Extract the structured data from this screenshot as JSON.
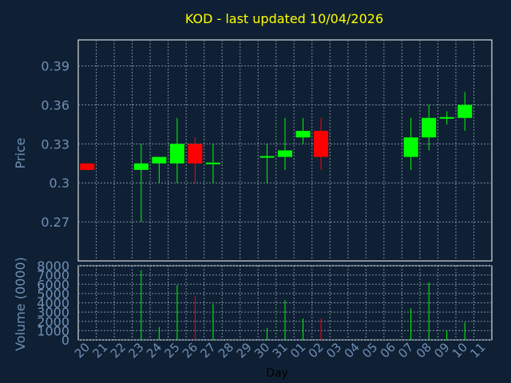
{
  "colors": {
    "background": "#0f2034",
    "plot": "#ffffff",
    "title": "#ffff00",
    "axis_text": "#6f8fb5",
    "grid": "#7f8ea0",
    "up": "#00ff00",
    "down": "#ff0000"
  },
  "chart_data": {
    "type": "candlestick",
    "title": "KOD - last updated 10/04/2026",
    "xlabel": "Day",
    "price_panel": {
      "ylabel": "Price",
      "yticks": [
        "0.27",
        "0.3",
        "0.33",
        "0.36",
        "0.39"
      ],
      "tick_values": [
        0.27,
        0.3,
        0.33,
        0.36,
        0.39
      ],
      "ylim": [
        0.24,
        0.41
      ],
      "grid": true
    },
    "volume_panel": {
      "ylabel": "Volume (0000)",
      "yticks": [
        "0",
        "1000",
        "2000",
        "3000",
        "4000",
        "5000",
        "6000",
        "7000",
        "8000"
      ],
      "tick_values": [
        0,
        1000,
        2000,
        3000,
        4000,
        5000,
        6000,
        7000,
        8000
      ],
      "ylim": [
        0,
        8000
      ],
      "grid": true
    },
    "x_tick_labels": [
      "20",
      "21",
      "22",
      "23",
      "24",
      "25",
      "26",
      "27",
      "28",
      "29",
      "30",
      "31",
      "01",
      "02",
      "03",
      "04",
      "05",
      "06",
      "07",
      "08",
      "09",
      "10",
      "11"
    ],
    "candles": [
      {
        "day": "20",
        "open": 0.315,
        "high": 0.315,
        "low": 0.31,
        "close": 0.31,
        "volume": 0
      },
      {
        "day": "23",
        "open": 0.31,
        "high": 0.33,
        "low": 0.27,
        "close": 0.315,
        "volume": 7500
      },
      {
        "day": "24",
        "open": 0.315,
        "high": 0.32,
        "low": 0.3,
        "close": 0.32,
        "volume": 1400
      },
      {
        "day": "25",
        "open": 0.315,
        "high": 0.35,
        "low": 0.3,
        "close": 0.33,
        "volume": 5900
      },
      {
        "day": "26",
        "open": 0.33,
        "high": 0.335,
        "low": 0.3,
        "close": 0.315,
        "volume": 4700
      },
      {
        "day": "27",
        "open": 0.315,
        "high": 0.33,
        "low": 0.3,
        "close": 0.315,
        "volume": 3900
      },
      {
        "day": "30",
        "open": 0.32,
        "high": 0.33,
        "low": 0.3,
        "close": 0.32,
        "volume": 1300
      },
      {
        "day": "31",
        "open": 0.32,
        "high": 0.35,
        "low": 0.31,
        "close": 0.325,
        "volume": 4300
      },
      {
        "day": "01",
        "open": 0.335,
        "high": 0.35,
        "low": 0.33,
        "close": 0.34,
        "volume": 2300
      },
      {
        "day": "02",
        "open": 0.34,
        "high": 0.35,
        "low": 0.31,
        "close": 0.32,
        "volume": 2300
      },
      {
        "day": "07",
        "open": 0.32,
        "high": 0.35,
        "low": 0.31,
        "close": 0.335,
        "volume": 3400
      },
      {
        "day": "08",
        "open": 0.335,
        "high": 0.36,
        "low": 0.325,
        "close": 0.35,
        "volume": 6200
      },
      {
        "day": "09",
        "open": 0.35,
        "high": 0.355,
        "low": 0.345,
        "close": 0.35,
        "volume": 1000
      },
      {
        "day": "10",
        "open": 0.35,
        "high": 0.37,
        "low": 0.34,
        "close": 0.36,
        "volume": 1900
      }
    ]
  }
}
